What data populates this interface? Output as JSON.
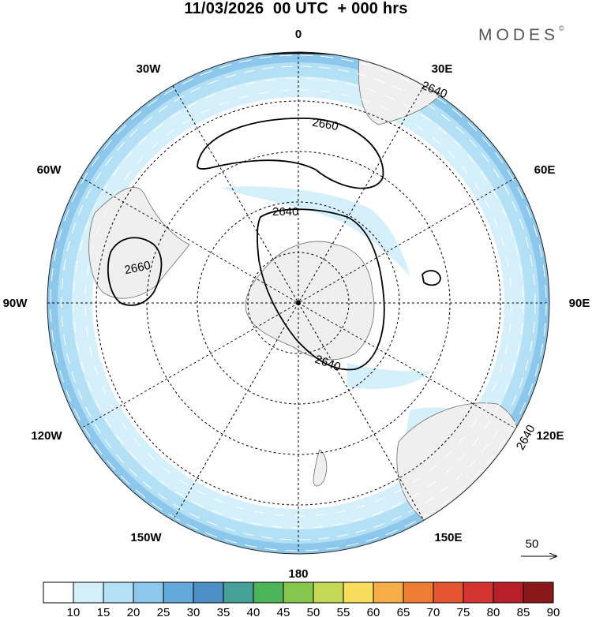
{
  "header": {
    "title": "11/03/2026  00 UTC  + 000 hrs",
    "brand": "MODES",
    "brand_mark": "©"
  },
  "map": {
    "projection": "south-polar-stereographic",
    "longitude_labels": {
      "top": "0",
      "lon_30e": "30E",
      "lon_60e": "60E",
      "lon_90e": "90E",
      "lon_120e": "120E",
      "lon_150e": "150E",
      "bottom": "180",
      "lon_150w": "150W",
      "lon_120w": "120W",
      "lon_90w": "90W",
      "lon_60w": "60W",
      "lon_30w": "30W"
    },
    "contours": [
      {
        "label": "2640",
        "note": "outer ring near Africa"
      },
      {
        "label": "2660",
        "note": "south of Atlantic"
      },
      {
        "label": "2640",
        "note": "around Antarctica"
      },
      {
        "label": "2660",
        "note": "near South America"
      },
      {
        "label": "2640",
        "note": "near Australia"
      }
    ],
    "contour_labels": {
      "c2640_africa": "2640",
      "c2660_atlantic": "2660",
      "c2640_antarctica_top": "2640",
      "c2640_antarctica_bottom": "2640",
      "c2660_southamerica": "2660",
      "c2640_australia": "2640"
    },
    "reference_vector": {
      "label": "50",
      "icon": "arrow-right-icon"
    }
  },
  "colorbar": {
    "labels": [
      "10",
      "15",
      "20",
      "25",
      "30",
      "35",
      "40",
      "45",
      "50",
      "55",
      "60",
      "65",
      "70",
      "75",
      "80",
      "85",
      "90"
    ],
    "colors": [
      "#ffffff",
      "#d6f0fb",
      "#b4e0f5",
      "#8dc8ec",
      "#64a9dc",
      "#4b8fc6",
      "#44a098",
      "#4cb55a",
      "#86c64e",
      "#c4da56",
      "#f8dc5c",
      "#f5ad46",
      "#ef7c33",
      "#e45632",
      "#d43530",
      "#b81f28",
      "#8a1818"
    ]
  },
  "style": {
    "land": "#efefef",
    "coast": "#6b6b6b",
    "band_light": "#d6f0fb",
    "band_mid": "#b4e0f5",
    "band_strong": "#8dc8ec"
  }
}
